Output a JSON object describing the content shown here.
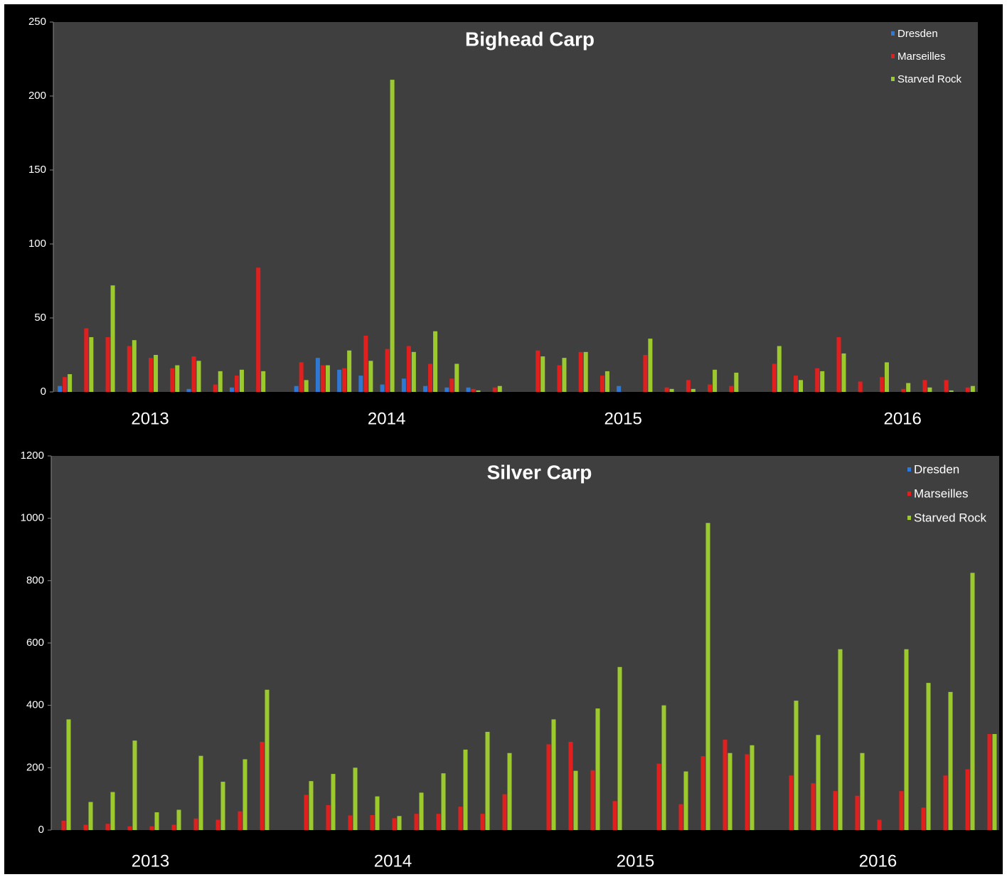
{
  "chart_data": [
    {
      "type": "bar",
      "title": "Bighead Carp",
      "categories": [
        null,
        null,
        null,
        null,
        "2013",
        null,
        null,
        null,
        null,
        null,
        null,
        null,
        null,
        null,
        null,
        "2014",
        null,
        null,
        null,
        null,
        null,
        null,
        null,
        null,
        null,
        null,
        "2015",
        null,
        null,
        null,
        null,
        null,
        null,
        null,
        null,
        null,
        null,
        null,
        null,
        "2016",
        null,
        null,
        null
      ],
      "series": [
        {
          "name": "Dresden",
          "color": "#2f78d4",
          "values": [
            4,
            0,
            0,
            0,
            0,
            0,
            2,
            0,
            3,
            0,
            0,
            4,
            23,
            15,
            11,
            5,
            9,
            4,
            3,
            3,
            0,
            0,
            0,
            0,
            0,
            0,
            4,
            0,
            0,
            0,
            0,
            0,
            0,
            0,
            0,
            0,
            0,
            0,
            0,
            0,
            0,
            0,
            0
          ]
        },
        {
          "name": "Marseilles",
          "color": "#e0201e",
          "values": [
            10,
            43,
            37,
            31,
            23,
            16,
            24,
            5,
            11,
            84,
            0,
            20,
            18,
            16,
            38,
            29,
            31,
            19,
            9,
            2,
            3,
            0,
            28,
            18,
            27,
            11,
            0,
            25,
            3,
            8,
            5,
            4,
            0,
            19,
            11,
            16,
            37,
            7,
            10,
            2,
            8,
            8,
            3
          ]
        },
        {
          "name": "Starved Rock",
          "color": "#9cc92e",
          "values": [
            12,
            37,
            72,
            35,
            25,
            18,
            21,
            14,
            15,
            14,
            0,
            8,
            18,
            28,
            21,
            211,
            27,
            41,
            19,
            1,
            4,
            0,
            24,
            23,
            27,
            14,
            0,
            36,
            2,
            2,
            15,
            13,
            0,
            31,
            8,
            14,
            26,
            0,
            20,
            6,
            3,
            1,
            4
          ]
        }
      ],
      "ylim": [
        0,
        250
      ],
      "yticks": [
        0,
        50,
        100,
        150,
        200,
        250
      ],
      "legend": "upper right"
    },
    {
      "type": "bar",
      "title": "Silver Carp",
      "categories": [
        null,
        null,
        null,
        null,
        "2013",
        null,
        null,
        null,
        null,
        null,
        null,
        null,
        null,
        null,
        null,
        "2014",
        null,
        null,
        null,
        null,
        null,
        null,
        null,
        null,
        null,
        null,
        "2015",
        null,
        null,
        null,
        null,
        null,
        null,
        null,
        null,
        null,
        null,
        "2016",
        null,
        null,
        null,
        null,
        null
      ],
      "series": [
        {
          "name": "Dresden",
          "color": "#2f78d4",
          "values": [
            0,
            0,
            0,
            0,
            0,
            0,
            0,
            0,
            0,
            0,
            0,
            0,
            0,
            0,
            0,
            0,
            0,
            0,
            0,
            0,
            0,
            0,
            0,
            0,
            0,
            0,
            0,
            0,
            0,
            0,
            0,
            0,
            0,
            0,
            0,
            0,
            0,
            0,
            0,
            0,
            0,
            0,
            0
          ]
        },
        {
          "name": "Marseilles",
          "color": "#e0201e",
          "values": [
            30,
            17,
            20,
            12,
            12,
            17,
            37,
            33,
            60,
            283,
            0,
            113,
            80,
            47,
            48,
            38,
            52,
            52,
            75,
            52,
            115,
            0,
            275,
            283,
            192,
            93,
            0,
            213,
            83,
            237,
            290,
            243,
            0,
            175,
            150,
            125,
            110,
            33,
            125,
            72,
            175,
            195,
            308
          ]
        },
        {
          "name": "Starved Rock",
          "color": "#9cc92e",
          "values": [
            355,
            90,
            122,
            287,
            57,
            65,
            238,
            155,
            227,
            450,
            0,
            157,
            180,
            200,
            108,
            45,
            120,
            182,
            258,
            315,
            247,
            0,
            355,
            190,
            390,
            523,
            0,
            400,
            188,
            985,
            247,
            272,
            0,
            415,
            305,
            580,
            247,
            0,
            580,
            472,
            443,
            825,
            308
          ]
        }
      ],
      "ylim": [
        0,
        1200
      ],
      "yticks": [
        0,
        200,
        400,
        600,
        800,
        1000,
        1200
      ],
      "legend": "upper right"
    }
  ]
}
